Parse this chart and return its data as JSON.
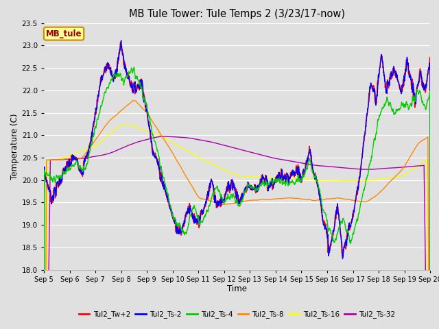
{
  "title": "MB Tule Tower: Tule Temps 2 (3/23/17-now)",
  "xlabel": "Time",
  "ylabel": "Temperature (C)",
  "ylim": [
    18.0,
    23.5
  ],
  "yticks": [
    18.0,
    18.5,
    19.0,
    19.5,
    20.0,
    20.5,
    21.0,
    21.5,
    22.0,
    22.5,
    23.0,
    23.5
  ],
  "bg_color": "#e0e0e0",
  "grid_color": "#ffffff",
  "series_colors": {
    "Tul2_Tw+2": "#ff0000",
    "Tul2_Ts-2": "#0000ff",
    "Tul2_Ts-4": "#00cc00",
    "Tul2_Ts-8": "#ff8800",
    "Tul2_Ts-16": "#ffff00",
    "Tul2_Ts-32": "#aa00aa"
  },
  "annotation_text": "MB_tule",
  "annotation_bg": "#ffff99",
  "annotation_border": "#cc8800",
  "x_tick_labels": [
    "Sep 5",
    "Sep 6",
    "Sep 7",
    "Sep 8",
    "Sep 9",
    "Sep 10",
    "Sep 11",
    "Sep 12",
    "Sep 13",
    "Sep 14",
    "Sep 15",
    "Sep 16",
    "Sep 17",
    "Sep 18",
    "Sep 19",
    "Sep 20"
  ],
  "n_points": 1500,
  "line_width": 1.0
}
